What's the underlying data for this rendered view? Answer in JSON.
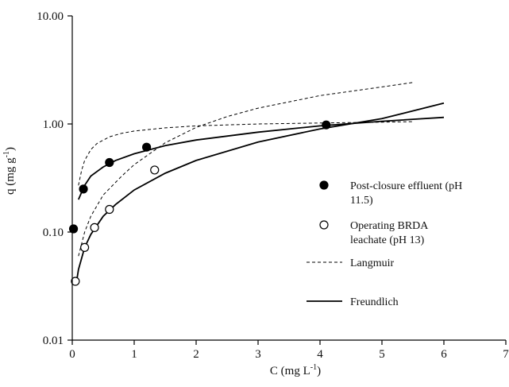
{
  "chart_data": {
    "type": "scatter",
    "title": "",
    "xlabel": "C (mg L",
    "xlabel_sup": "-1",
    "xlabel_close": ")",
    "ylabel": "q (mg g",
    "ylabel_sup": "-1",
    "ylabel_close": ")",
    "xlim": [
      0,
      7
    ],
    "ylim": [
      0.01,
      10
    ],
    "yscale": "log",
    "x_ticks": [
      0,
      1,
      2,
      3,
      4,
      5,
      6,
      7
    ],
    "x_tick_labels": [
      "0",
      "1",
      "2",
      "3",
      "4",
      "5",
      "6",
      "7"
    ],
    "y_ticks": [
      0.01,
      0.1,
      1,
      10
    ],
    "y_tick_labels": [
      "0.01",
      "0.10",
      "1.00",
      "10.00"
    ],
    "grid": false,
    "legend_position": "right",
    "series": [
      {
        "name": "Post-closure effluent (pH 11.5)",
        "kind": "points",
        "marker": "filled-circle",
        "color": "#000000",
        "x": [
          0.02,
          0.18,
          0.6,
          1.2,
          4.1
        ],
        "y": [
          0.107,
          0.25,
          0.44,
          0.61,
          0.98
        ]
      },
      {
        "name": "Operating BRDA leachate (pH 13)",
        "kind": "points",
        "marker": "open-circle",
        "color": "#000000",
        "x": [
          0.05,
          0.2,
          0.36,
          0.6,
          1.33
        ],
        "y": [
          0.035,
          0.072,
          0.11,
          0.162,
          0.375
        ]
      },
      {
        "name": "Langmuir",
        "kind": "line",
        "style": "dashed",
        "color": "#000000",
        "curves": [
          {
            "x": [
              0.1,
              0.15,
              0.2,
              0.3,
              0.4,
              0.6,
              0.8,
              1.0,
              1.5,
              2.0,
              3.0,
              4.0,
              5.0,
              5.5
            ],
            "y": [
              0.27,
              0.37,
              0.46,
              0.58,
              0.66,
              0.76,
              0.82,
              0.86,
              0.92,
              0.96,
              1.0,
              1.02,
              1.04,
              1.05
            ]
          },
          {
            "x": [
              0.1,
              0.2,
              0.3,
              0.5,
              0.8,
              1.0,
              1.5,
              2.0,
              2.5,
              3.0,
              4.0,
              5.0,
              5.5
            ],
            "y": [
              0.06,
              0.1,
              0.14,
              0.22,
              0.33,
              0.42,
              0.67,
              0.93,
              1.17,
              1.4,
              1.83,
              2.2,
              2.42
            ]
          }
        ]
      },
      {
        "name": "Freundlich",
        "kind": "line",
        "style": "solid",
        "color": "#000000",
        "curves": [
          {
            "x": [
              0.1,
              0.2,
              0.3,
              0.5,
              0.7,
              1.0,
              1.5,
              2.0,
              3.0,
              4.0,
              5.0,
              6.0
            ],
            "y": [
              0.2,
              0.27,
              0.33,
              0.4,
              0.46,
              0.53,
              0.63,
              0.71,
              0.84,
              0.96,
              1.06,
              1.15
            ]
          },
          {
            "x": [
              0.07,
              0.1,
              0.2,
              0.3,
              0.5,
              0.7,
              1.0,
              1.5,
              2.0,
              3.0,
              4.0,
              5.0,
              6.0
            ],
            "y": [
              0.035,
              0.045,
              0.072,
              0.095,
              0.14,
              0.18,
              0.245,
              0.35,
              0.46,
              0.68,
              0.9,
              1.12,
              1.56
            ]
          }
        ]
      }
    ]
  }
}
